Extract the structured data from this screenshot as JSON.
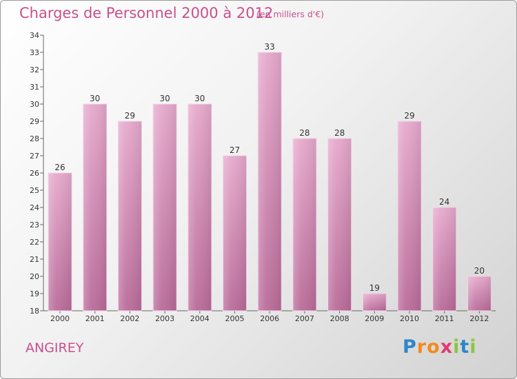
{
  "title": "Charges de Personnel 2000 à 2012",
  "subtitle": "(en milliers d'€)",
  "commune": "ANGIREY",
  "logo": {
    "text": "Proxiti",
    "letters": [
      {
        "ch": "P",
        "color": "#2e86c9"
      },
      {
        "ch": "r",
        "color": "#f28a1d"
      },
      {
        "ch": "o",
        "color": "#f28a1d"
      },
      {
        "ch": "x",
        "color": "#e23a6e"
      },
      {
        "ch": "i",
        "color": "#8cc63f"
      },
      {
        "ch": "t",
        "color": "#2e86c9"
      },
      {
        "ch": "i",
        "color": "#8cc63f"
      }
    ]
  },
  "colors": {
    "bar_light": "#e6a9cc",
    "bar_dark": "#b96b99",
    "text_accent": "#c8508e"
  },
  "chart_data": {
    "type": "bar",
    "categories": [
      "2000",
      "2001",
      "2002",
      "2003",
      "2004",
      "2005",
      "2006",
      "2007",
      "2008",
      "2009",
      "2010",
      "2011",
      "2012"
    ],
    "values": [
      26,
      30,
      29,
      30,
      30,
      27,
      33,
      28,
      28,
      19,
      29,
      24,
      20
    ],
    "ylim": [
      18,
      34
    ],
    "yticks": [
      18,
      19,
      20,
      21,
      22,
      23,
      24,
      25,
      26,
      27,
      28,
      29,
      30,
      31,
      32,
      33,
      34
    ],
    "grid": false,
    "legend": "none"
  }
}
